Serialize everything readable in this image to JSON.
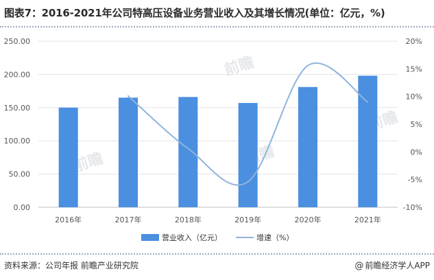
{
  "header": {
    "title": "图表7：2016-2021年公司特高压设备业务营业收入及其增长情况(单位：亿元，%)"
  },
  "footer": {
    "source": "资料来源：公司年报 前瞻产业研究院",
    "brand_at": "@",
    "brand": "前瞻经济学人APP"
  },
  "colors": {
    "bar": "#4a8fe0",
    "line": "#8fb4dd",
    "axis_text": "#555555",
    "grid": "#e3e3e3"
  },
  "chart_data": {
    "type": "bar",
    "categories": [
      "2016年",
      "2017年",
      "2018年",
      "2019年",
      "2020年",
      "2021年"
    ],
    "series": [
      {
        "name": "营业收入（亿元）",
        "type": "bar",
        "axis": "left",
        "values": [
          150,
          165,
          166,
          157,
          181,
          198
        ]
      },
      {
        "name": "增速（%）",
        "type": "line",
        "axis": "right",
        "smooth": true,
        "values": [
          null,
          10.1,
          0.6,
          -5.4,
          15.6,
          9.0
        ]
      }
    ],
    "y_left": {
      "min": 0,
      "max": 250,
      "step": 50,
      "ticks": [
        "0.00",
        "50.00",
        "100.00",
        "150.00",
        "200.00",
        "250.00"
      ]
    },
    "y_right": {
      "min": -10,
      "max": 20,
      "step": 5,
      "ticks": [
        "-10%",
        "-5%",
        "0%",
        "5%",
        "10%",
        "15%",
        "20%"
      ]
    },
    "grid": true,
    "legend_position": "bottom-center"
  }
}
